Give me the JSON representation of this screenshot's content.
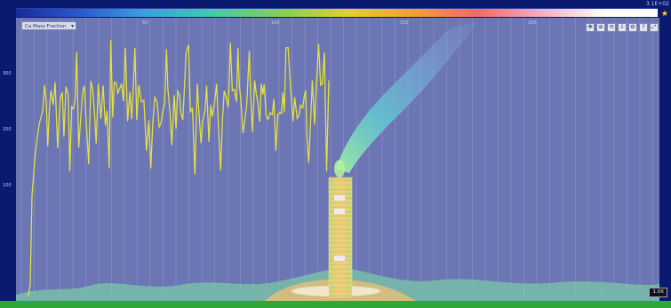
{
  "colorbar": {
    "scale_label": "3.1E+02"
  },
  "dropdown": {
    "label": "Ca Mass Fraction"
  },
  "toolbar": {
    "buttons": [
      "pan",
      "zoom",
      "reset",
      "export",
      "settings",
      "help",
      "fit"
    ]
  },
  "x_ticks": [
    "50",
    "100",
    "150",
    "200"
  ],
  "y_ticks": [
    "100",
    "200",
    "300"
  ],
  "zoom_label": "1.0X",
  "colors": {
    "trace": "#e4e040",
    "plot_bg": "#6c76b4",
    "tower": "#e8b860",
    "plume": "#70d8d0"
  }
}
